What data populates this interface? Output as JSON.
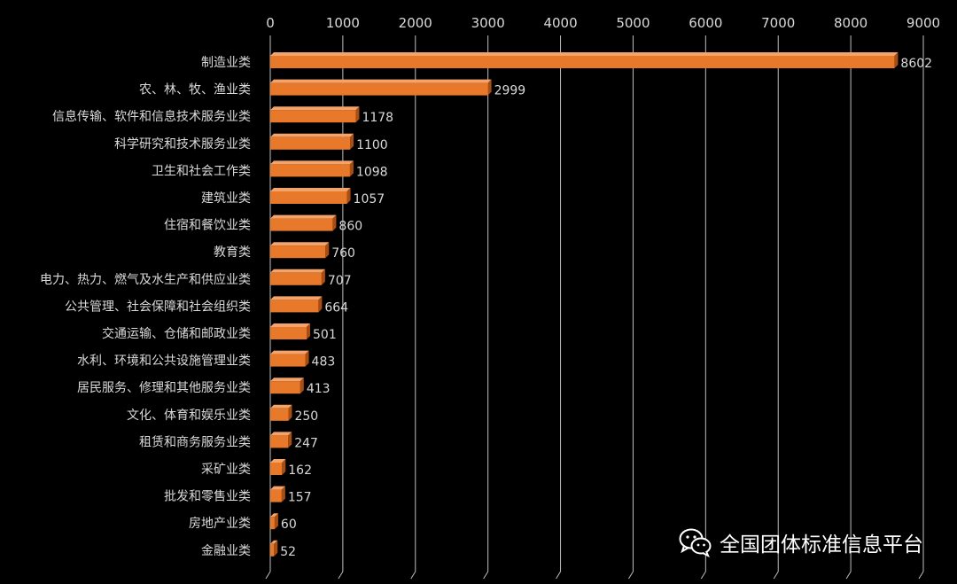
{
  "chart_data": {
    "type": "bar",
    "orientation": "horizontal",
    "categories": [
      "制造业类",
      "农、林、牧、渔业类",
      "信息传输、软件和信息技术服务业类",
      "科学研究和技术服务业类",
      "卫生和社会工作类",
      "建筑业类",
      "住宿和餐饮业类",
      "教育类",
      "电力、热力、燃气及水生产和供应业类",
      "公共管理、社会保障和社会组织类",
      "交通运输、仓储和邮政业类",
      "水利、环境和公共设施管理业类",
      "居民服务、修理和其他服务业类",
      "文化、体育和娱乐业类",
      "租赁和商务服务业类",
      "采矿业类",
      "批发和零售业类",
      "房地产业类",
      "金融业类"
    ],
    "values": [
      8602,
      2999,
      1178,
      1100,
      1098,
      1057,
      860,
      760,
      707,
      664,
      501,
      483,
      413,
      250,
      247,
      162,
      157,
      60,
      52
    ],
    "xlim": [
      0,
      9000
    ],
    "xticks": [
      0,
      1000,
      2000,
      3000,
      4000,
      5000,
      6000,
      7000,
      8000,
      9000
    ],
    "axis_position": "top",
    "grid": true,
    "bar_color": "#e8782a",
    "background": "#000000"
  },
  "watermark": {
    "text": "全国团体标准信息平台",
    "icon": "wechat-icon"
  }
}
